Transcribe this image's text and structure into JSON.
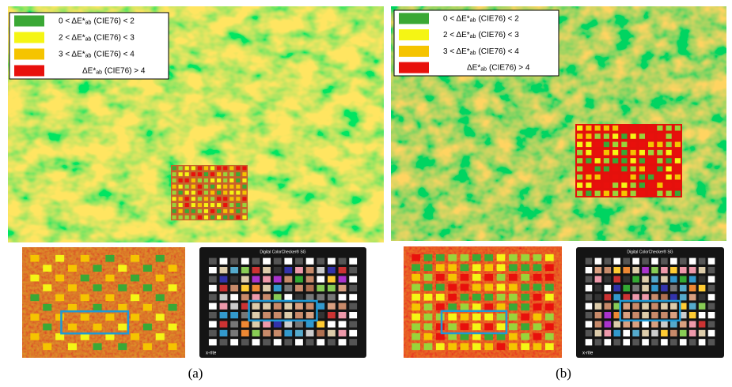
{
  "panels": [
    {
      "label": "(a)",
      "legend": [
        {
          "prefix": "0 < ΔE*",
          "sub": "ab",
          "suffix": "(CIE76) < 2",
          "color": "#3aa835"
        },
        {
          "prefix": "2 < ΔE*",
          "sub": "ab",
          "suffix": "(CIE76) < 3",
          "color": "#f5f514"
        },
        {
          "prefix": "3 < ΔE*",
          "sub": "ab",
          "suffix": "(CIE76) < 4",
          "color": "#f5c400"
        },
        {
          "prefix": "ΔE*",
          "sub": "ab",
          "suffix": "(CIE76) > 4",
          "color": "#e8100c"
        }
      ],
      "chart_title": "Digital ColorChecker® SG",
      "brand": "x-rite"
    },
    {
      "label": "(b)",
      "legend": [
        {
          "prefix": "0 < ΔE*",
          "sub": "ab",
          "suffix": "(CIE76) < 2",
          "color": "#3aa835"
        },
        {
          "prefix": "2 < ΔE*",
          "sub": "ab",
          "suffix": "(CIE76) < 3",
          "color": "#f5f514"
        },
        {
          "prefix": "3 < ΔE*",
          "sub": "ab",
          "suffix": "(CIE76) < 4",
          "color": "#f5c400"
        },
        {
          "prefix": "ΔE*",
          "sub": "ab",
          "suffix": "(CIE76) > 4",
          "color": "#e8100c"
        }
      ],
      "chart_title": "Digital ColorChecker® SG",
      "brand": "x-rite"
    }
  ]
}
